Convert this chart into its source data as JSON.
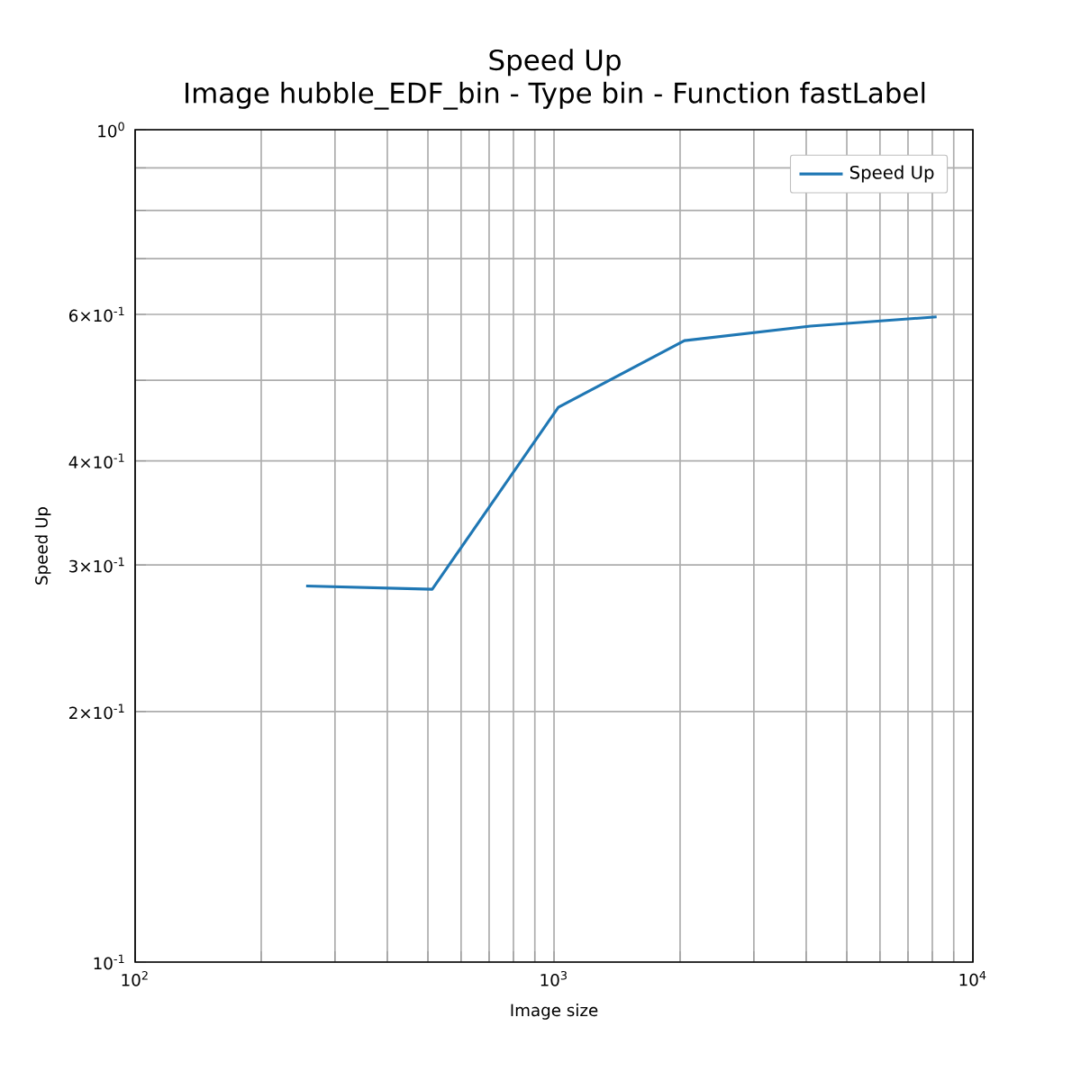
{
  "chart_data": {
    "type": "line",
    "title": "Speed Up",
    "subtitle": "Image hubble_EDF_bin - Type bin - Function fastLabel",
    "xlabel": "Image size",
    "ylabel": "Speed Up",
    "x": [
      256,
      512,
      1024,
      2048,
      4096,
      8192
    ],
    "series": [
      {
        "name": "Speed Up",
        "color": "#1f77b4",
        "values": [
          0.283,
          0.2805,
          0.464,
          0.558,
          0.581,
          0.596
        ]
      }
    ],
    "log": "xy",
    "xlim": [
      100,
      10000
    ],
    "ylim": [
      0.1,
      1
    ],
    "xticks": [
      {
        "value": 100,
        "label": "10$^{2}$"
      },
      {
        "value": 200,
        "label": null
      },
      {
        "value": 300,
        "label": null
      },
      {
        "value": 400,
        "label": null
      },
      {
        "value": 500,
        "label": null
      },
      {
        "value": 600,
        "label": null
      },
      {
        "value": 700,
        "label": null
      },
      {
        "value": 800,
        "label": null
      },
      {
        "value": 900,
        "label": null
      },
      {
        "value": 1000,
        "label": "10$^{3}$"
      },
      {
        "value": 2000,
        "label": null
      },
      {
        "value": 3000,
        "label": null
      },
      {
        "value": 4000,
        "label": null
      },
      {
        "value": 5000,
        "label": null
      },
      {
        "value": 6000,
        "label": null
      },
      {
        "value": 7000,
        "label": null
      },
      {
        "value": 8000,
        "label": null
      },
      {
        "value": 9000,
        "label": null
      },
      {
        "value": 10000,
        "label": "10$^{4}$"
      }
    ],
    "yticks": [
      {
        "value": 0.1,
        "label": "10$^{-1}$"
      },
      {
        "value": 0.2,
        "label": "2×10$^{-1}$"
      },
      {
        "value": 0.3,
        "label": "3×10$^{-1}$"
      },
      {
        "value": 0.4,
        "label": "4×10$^{-1}$"
      },
      {
        "value": 0.5,
        "label": null
      },
      {
        "value": 0.6,
        "label": "6×10$^{-1}$"
      },
      {
        "value": 0.7,
        "label": null
      },
      {
        "value": 0.8,
        "label": null
      },
      {
        "value": 0.9,
        "label": null
      },
      {
        "value": 1,
        "label": "10$^{0}$"
      }
    ],
    "grid": true,
    "legend": "top right",
    "marker": "none",
    "line_style": "solid"
  }
}
